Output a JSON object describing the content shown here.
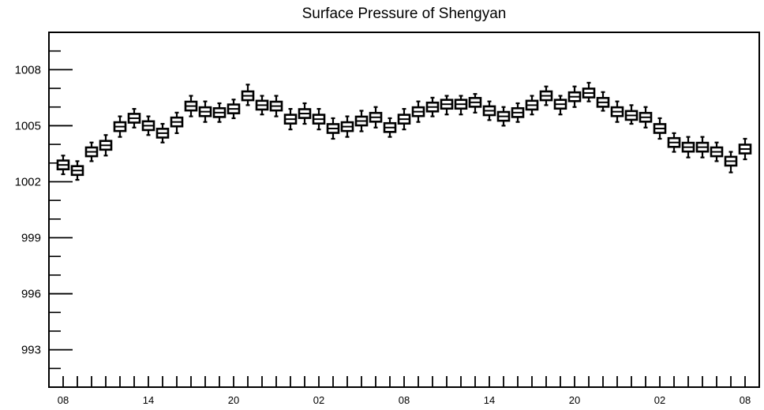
{
  "chart_data": {
    "type": "box",
    "title": "Surface Pressure of Shengyan",
    "xlabel": "",
    "ylabel": "",
    "ylim": [
      991,
      1010
    ],
    "yticks": [
      993,
      996,
      999,
      1002,
      1005,
      1008
    ],
    "x_tick_labels": [
      "08",
      "14",
      "20",
      "02",
      "08",
      "14",
      "20",
      "02",
      "08"
    ],
    "x_tick_positions": [
      0,
      6,
      12,
      18,
      24,
      30,
      36,
      42,
      48
    ],
    "xlim": [
      -1,
      49
    ],
    "grid": false,
    "boxes": [
      {
        "x": 0,
        "median": 1002.9,
        "q1": 1002.75,
        "q3": 1003.05,
        "whisker_low": 1002.4,
        "whisker_high": 1003.4
      },
      {
        "x": 1,
        "median": 1002.6,
        "q1": 1002.45,
        "q3": 1002.75,
        "whisker_low": 1002.1,
        "whisker_high": 1003.1
      },
      {
        "x": 2,
        "median": 1003.6,
        "q1": 1003.45,
        "q3": 1003.75,
        "whisker_low": 1003.1,
        "whisker_high": 1004.1
      },
      {
        "x": 3,
        "median": 1003.95,
        "q1": 1003.8,
        "q3": 1004.1,
        "whisker_low": 1003.4,
        "whisker_high": 1004.5
      },
      {
        "x": 4,
        "median": 1004.95,
        "q1": 1004.8,
        "q3": 1005.1,
        "whisker_low": 1004.4,
        "whisker_high": 1005.5
      },
      {
        "x": 5,
        "median": 1005.4,
        "q1": 1005.25,
        "q3": 1005.55,
        "whisker_low": 1004.9,
        "whisker_high": 1005.9
      },
      {
        "x": 6,
        "median": 1005.0,
        "q1": 1004.85,
        "q3": 1005.15,
        "whisker_low": 1004.5,
        "whisker_high": 1005.5
      },
      {
        "x": 7,
        "median": 1004.6,
        "q1": 1004.45,
        "q3": 1004.75,
        "whisker_low": 1004.1,
        "whisker_high": 1005.1
      },
      {
        "x": 8,
        "median": 1005.2,
        "q1": 1005.05,
        "q3": 1005.35,
        "whisker_low": 1004.6,
        "whisker_high": 1005.7
      },
      {
        "x": 9,
        "median": 1006.05,
        "q1": 1005.9,
        "q3": 1006.2,
        "whisker_low": 1005.5,
        "whisker_high": 1006.6
      },
      {
        "x": 10,
        "median": 1005.75,
        "q1": 1005.6,
        "q3": 1005.9,
        "whisker_low": 1005.2,
        "whisker_high": 1006.3
      },
      {
        "x": 11,
        "median": 1005.7,
        "q1": 1005.55,
        "q3": 1005.85,
        "whisker_low": 1005.2,
        "whisker_high": 1006.2
      },
      {
        "x": 12,
        "median": 1005.9,
        "q1": 1005.75,
        "q3": 1006.05,
        "whisker_low": 1005.4,
        "whisker_high": 1006.4
      },
      {
        "x": 13,
        "median": 1006.6,
        "q1": 1006.45,
        "q3": 1006.75,
        "whisker_low": 1006.1,
        "whisker_high": 1007.2
      },
      {
        "x": 14,
        "median": 1006.1,
        "q1": 1005.95,
        "q3": 1006.25,
        "whisker_low": 1005.6,
        "whisker_high": 1006.6
      },
      {
        "x": 15,
        "median": 1006.05,
        "q1": 1005.9,
        "q3": 1006.2,
        "whisker_low": 1005.5,
        "whisker_high": 1006.6
      },
      {
        "x": 16,
        "median": 1005.35,
        "q1": 1005.2,
        "q3": 1005.5,
        "whisker_low": 1004.8,
        "whisker_high": 1005.9
      },
      {
        "x": 17,
        "median": 1005.65,
        "q1": 1005.5,
        "q3": 1005.8,
        "whisker_low": 1005.1,
        "whisker_high": 1006.2
      },
      {
        "x": 18,
        "median": 1005.35,
        "q1": 1005.2,
        "q3": 1005.5,
        "whisker_low": 1004.8,
        "whisker_high": 1005.9
      },
      {
        "x": 19,
        "median": 1004.85,
        "q1": 1004.7,
        "q3": 1005.0,
        "whisker_low": 1004.3,
        "whisker_high": 1005.4
      },
      {
        "x": 20,
        "median": 1004.95,
        "q1": 1004.8,
        "q3": 1005.1,
        "whisker_low": 1004.4,
        "whisker_high": 1005.5
      },
      {
        "x": 21,
        "median": 1005.25,
        "q1": 1005.1,
        "q3": 1005.4,
        "whisker_low": 1004.7,
        "whisker_high": 1005.8
      },
      {
        "x": 22,
        "median": 1005.45,
        "q1": 1005.3,
        "q3": 1005.6,
        "whisker_low": 1004.9,
        "whisker_high": 1006.0
      },
      {
        "x": 23,
        "median": 1004.9,
        "q1": 1004.75,
        "q3": 1005.05,
        "whisker_low": 1004.4,
        "whisker_high": 1005.4
      },
      {
        "x": 24,
        "median": 1005.35,
        "q1": 1005.2,
        "q3": 1005.5,
        "whisker_low": 1004.8,
        "whisker_high": 1005.9
      },
      {
        "x": 25,
        "median": 1005.75,
        "q1": 1005.6,
        "q3": 1005.9,
        "whisker_low": 1005.2,
        "whisker_high": 1006.3
      },
      {
        "x": 26,
        "median": 1006.0,
        "q1": 1005.85,
        "q3": 1006.15,
        "whisker_low": 1005.5,
        "whisker_high": 1006.5
      },
      {
        "x": 27,
        "median": 1006.15,
        "q1": 1006.0,
        "q3": 1006.3,
        "whisker_low": 1005.6,
        "whisker_high": 1006.6
      },
      {
        "x": 28,
        "median": 1006.15,
        "q1": 1006.0,
        "q3": 1006.3,
        "whisker_low": 1005.6,
        "whisker_high": 1006.6
      },
      {
        "x": 29,
        "median": 1006.25,
        "q1": 1006.1,
        "q3": 1006.4,
        "whisker_low": 1005.7,
        "whisker_high": 1006.7
      },
      {
        "x": 30,
        "median": 1005.8,
        "q1": 1005.65,
        "q3": 1005.95,
        "whisker_low": 1005.3,
        "whisker_high": 1006.3
      },
      {
        "x": 31,
        "median": 1005.5,
        "q1": 1005.35,
        "q3": 1005.65,
        "whisker_low": 1005.0,
        "whisker_high": 1006.0
      },
      {
        "x": 32,
        "median": 1005.7,
        "q1": 1005.55,
        "q3": 1005.85,
        "whisker_low": 1005.2,
        "whisker_high": 1006.2
      },
      {
        "x": 33,
        "median": 1006.1,
        "q1": 1005.95,
        "q3": 1006.25,
        "whisker_low": 1005.6,
        "whisker_high": 1006.6
      },
      {
        "x": 34,
        "median": 1006.6,
        "q1": 1006.45,
        "q3": 1006.75,
        "whisker_low": 1006.1,
        "whisker_high": 1007.1
      },
      {
        "x": 35,
        "median": 1006.15,
        "q1": 1006.0,
        "q3": 1006.3,
        "whisker_low": 1005.6,
        "whisker_high": 1006.6
      },
      {
        "x": 36,
        "median": 1006.55,
        "q1": 1006.4,
        "q3": 1006.7,
        "whisker_low": 1006.0,
        "whisker_high": 1007.1
      },
      {
        "x": 37,
        "median": 1006.75,
        "q1": 1006.6,
        "q3": 1006.9,
        "whisker_low": 1006.3,
        "whisker_high": 1007.3
      },
      {
        "x": 38,
        "median": 1006.25,
        "q1": 1006.1,
        "q3": 1006.4,
        "whisker_low": 1005.8,
        "whisker_high": 1006.8
      },
      {
        "x": 39,
        "median": 1005.75,
        "q1": 1005.6,
        "q3": 1005.9,
        "whisker_low": 1005.2,
        "whisker_high": 1006.3
      },
      {
        "x": 40,
        "median": 1005.55,
        "q1": 1005.4,
        "q3": 1005.7,
        "whisker_low": 1005.1,
        "whisker_high": 1006.1
      },
      {
        "x": 41,
        "median": 1005.45,
        "q1": 1005.3,
        "q3": 1005.6,
        "whisker_low": 1004.9,
        "whisker_high": 1006.0
      },
      {
        "x": 42,
        "median": 1004.85,
        "q1": 1004.7,
        "q3": 1005.0,
        "whisker_low": 1004.3,
        "whisker_high": 1005.4
      },
      {
        "x": 43,
        "median": 1004.1,
        "q1": 1003.95,
        "q3": 1004.25,
        "whisker_low": 1003.6,
        "whisker_high": 1004.6
      },
      {
        "x": 44,
        "median": 1003.85,
        "q1": 1003.7,
        "q3": 1004.0,
        "whisker_low": 1003.3,
        "whisker_high": 1004.4
      },
      {
        "x": 45,
        "median": 1003.85,
        "q1": 1003.7,
        "q3": 1004.0,
        "whisker_low": 1003.3,
        "whisker_high": 1004.4
      },
      {
        "x": 46,
        "median": 1003.6,
        "q1": 1003.45,
        "q3": 1003.75,
        "whisker_low": 1003.1,
        "whisker_high": 1004.1
      },
      {
        "x": 47,
        "median": 1003.1,
        "q1": 1002.95,
        "q3": 1003.25,
        "whisker_low": 1002.5,
        "whisker_high": 1003.6
      },
      {
        "x": 48,
        "median": 1003.75,
        "q1": 1003.6,
        "q3": 1003.9,
        "whisker_low": 1003.2,
        "whisker_high": 1004.3
      }
    ]
  }
}
